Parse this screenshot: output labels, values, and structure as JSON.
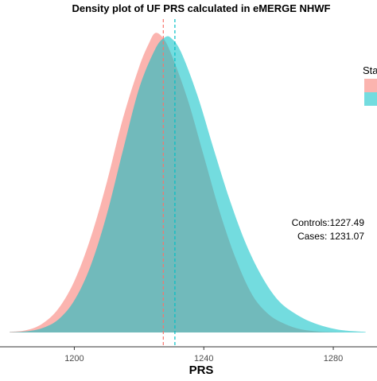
{
  "chart_data": {
    "type": "area",
    "title": "Density plot of UF PRS calculated in eMERGE NHWF",
    "xlabel": "PRS",
    "ylabel": "",
    "xlim": [
      1179.5,
      1293.5
    ],
    "ylim": [
      0,
      0.0293
    ],
    "x_ticks": [
      1200,
      1240,
      1280
    ],
    "x_tick_labels": [
      "1200",
      "1240",
      "1280"
    ],
    "grid": false,
    "legend": {
      "title": "Sta",
      "position": "right",
      "partially_visible": true
    },
    "series": [
      {
        "key": "controls",
        "color": "#F8766D",
        "mean": 1227.49,
        "points": [
          [
            1180,
            5e-05
          ],
          [
            1185,
            0.0002
          ],
          [
            1190,
            0.0008
          ],
          [
            1195,
            0.0022
          ],
          [
            1200,
            0.0048
          ],
          [
            1205,
            0.0088
          ],
          [
            1210,
            0.014
          ],
          [
            1215,
            0.02
          ],
          [
            1220,
            0.0248
          ],
          [
            1223,
            0.027
          ],
          [
            1225,
            0.028
          ],
          [
            1227.5,
            0.0275
          ],
          [
            1230,
            0.026
          ],
          [
            1235,
            0.0218
          ],
          [
            1240,
            0.0165
          ],
          [
            1245,
            0.0112
          ],
          [
            1250,
            0.0068
          ],
          [
            1255,
            0.0035
          ],
          [
            1260,
            0.0017
          ],
          [
            1265,
            0.0008
          ],
          [
            1270,
            0.0003
          ],
          [
            1275,
            0.0001
          ],
          [
            1280,
            3e-05
          ],
          [
            1290,
            0.0
          ]
        ]
      },
      {
        "key": "cases",
        "color": "#00BFC4",
        "mean": 1231.07,
        "points": [
          [
            1180,
            2e-05
          ],
          [
            1185,
            0.0001
          ],
          [
            1190,
            0.0004
          ],
          [
            1195,
            0.0012
          ],
          [
            1200,
            0.003
          ],
          [
            1205,
            0.0062
          ],
          [
            1210,
            0.011
          ],
          [
            1215,
            0.017
          ],
          [
            1220,
            0.0228
          ],
          [
            1225,
            0.0265
          ],
          [
            1228,
            0.0276
          ],
          [
            1230,
            0.0275
          ],
          [
            1233,
            0.0262
          ],
          [
            1238,
            0.0222
          ],
          [
            1243,
            0.0172
          ],
          [
            1248,
            0.0124
          ],
          [
            1253,
            0.0083
          ],
          [
            1258,
            0.0052
          ],
          [
            1263,
            0.003
          ],
          [
            1268,
            0.0018
          ],
          [
            1273,
            0.001
          ],
          [
            1278,
            0.0005
          ],
          [
            1283,
            0.0002
          ],
          [
            1290,
            5e-05
          ]
        ]
      }
    ],
    "vlines": [
      {
        "x": 1227.49,
        "color": "#F8766D",
        "style": "dashed"
      },
      {
        "x": 1231.07,
        "color": "#00BFC4",
        "style": "dashed"
      }
    ],
    "annotations": [
      {
        "text": "Controls:1227.49"
      },
      {
        "text": "Cases: 1231.07"
      }
    ]
  }
}
